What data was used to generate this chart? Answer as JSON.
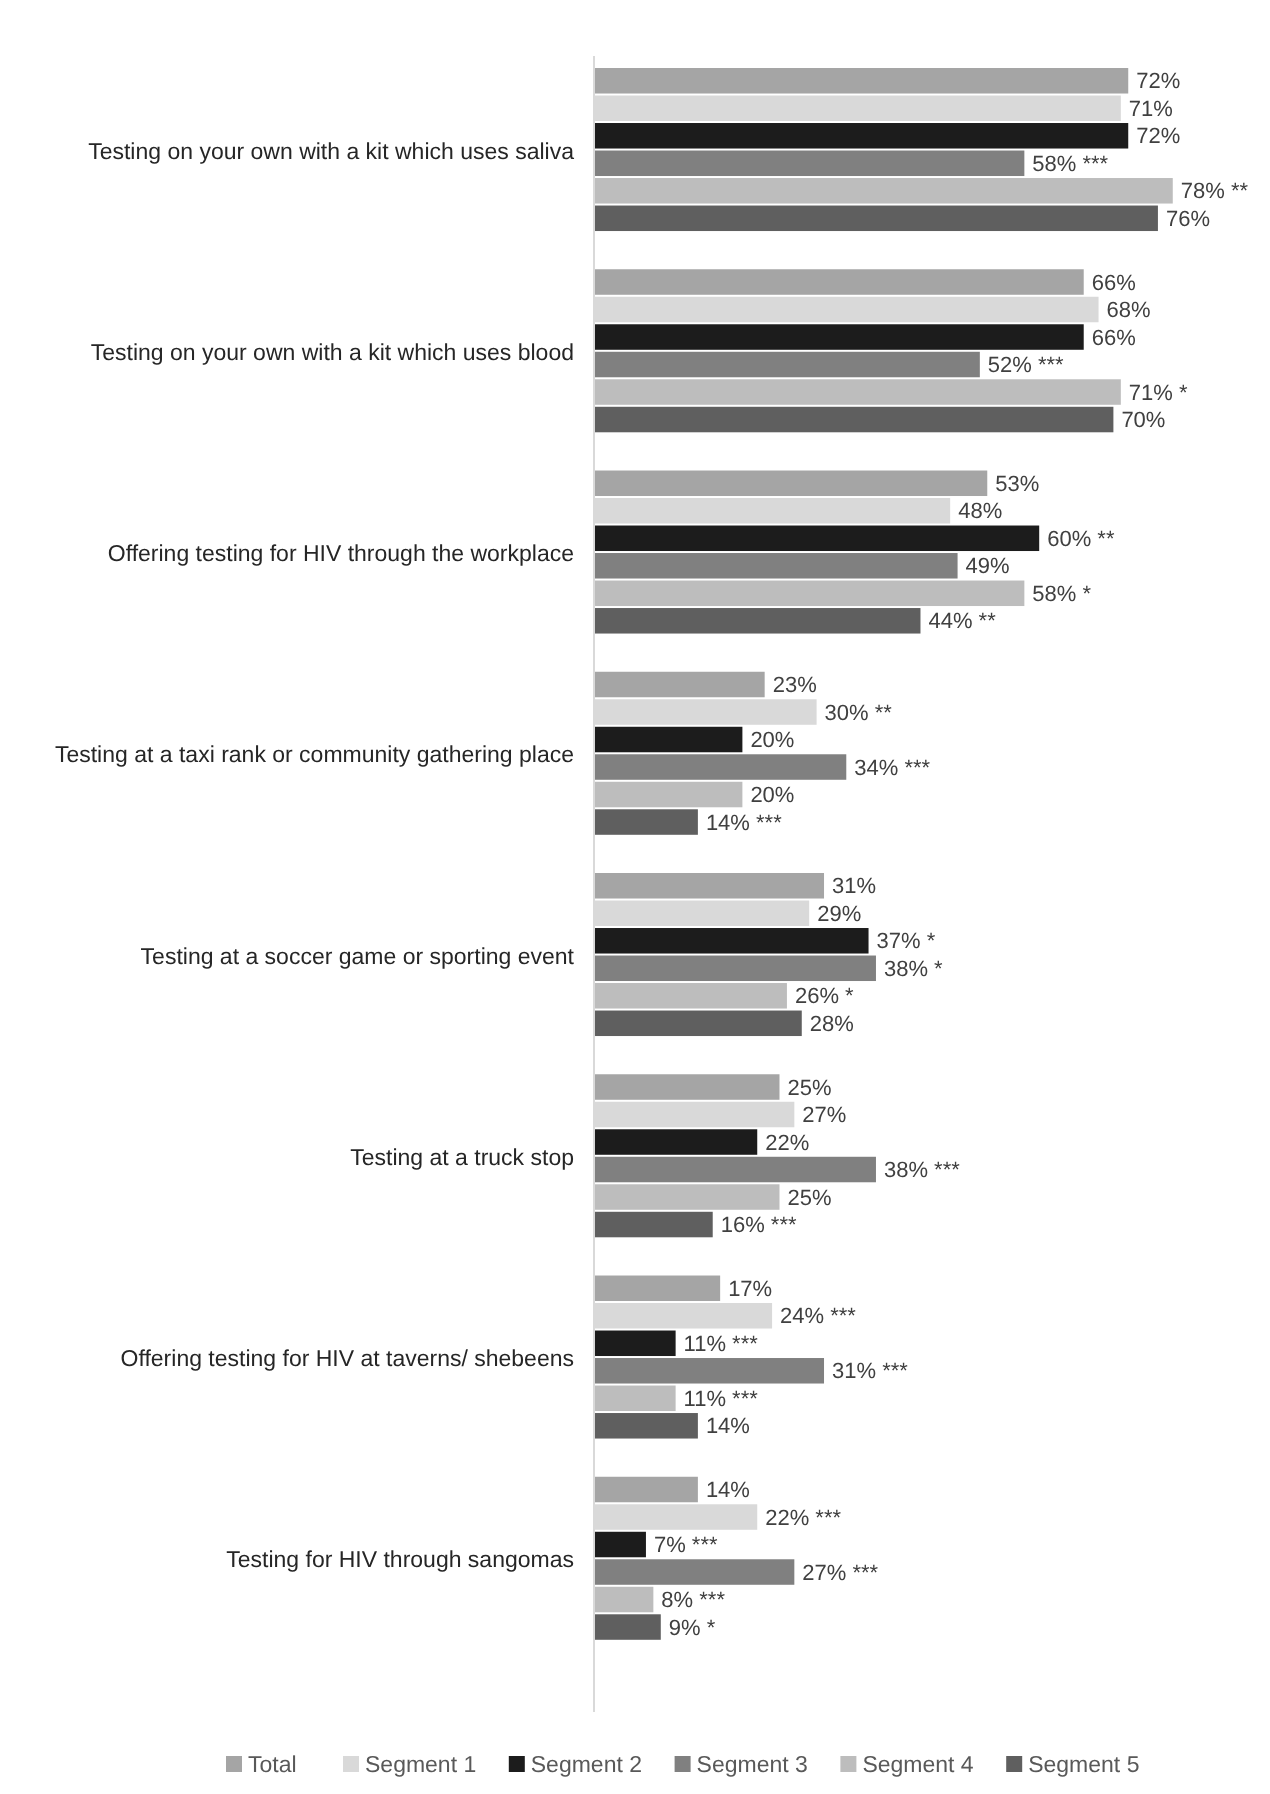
{
  "chart_data": {
    "type": "bar",
    "orientation": "horizontal",
    "legend": "bottom",
    "categories": [
      "Testing on your own with a kit which uses saliva",
      "Testing on your own with a kit which uses blood",
      "Offering testing for HIV through the workplace",
      "Testing at a taxi rank or community gathering place",
      "Testing at a soccer game or sporting event",
      "Testing at a truck stop",
      "Offering testing for HIV at taverns/ shebeens",
      "Testing for HIV through sangomas"
    ],
    "series": [
      {
        "name": "Total",
        "color": "#a5a5a5",
        "values": [
          72,
          66,
          53,
          23,
          31,
          25,
          17,
          14
        ],
        "value_labels": [
          "72%",
          "66%",
          "53%",
          "23%",
          "31%",
          "25%",
          "17%",
          "14%"
        ]
      },
      {
        "name": "Segment 1",
        "color": "#d9d9d9",
        "values": [
          71,
          68,
          48,
          30,
          29,
          27,
          24,
          22
        ],
        "value_labels": [
          "71%",
          "68%",
          "48%",
          "30% **",
          "29%",
          "27%",
          "24% ***",
          "22% ***"
        ]
      },
      {
        "name": "Segment 2",
        "color": "#1c1c1c",
        "values": [
          72,
          66,
          60,
          20,
          37,
          22,
          11,
          7
        ],
        "value_labels": [
          "72%",
          "66%",
          "60% **",
          "20%",
          "37% *",
          "22%",
          "11% ***",
          "7% ***"
        ]
      },
      {
        "name": "Segment 3",
        "color": "#808080",
        "values": [
          58,
          52,
          49,
          34,
          38,
          38,
          31,
          27
        ],
        "value_labels": [
          "58% ***",
          "52% ***",
          "49%",
          "34% ***",
          "38% *",
          "38% ***",
          "31% ***",
          "27% ***"
        ]
      },
      {
        "name": "Segment 4",
        "color": "#bdbdbd",
        "values": [
          78,
          71,
          58,
          20,
          26,
          25,
          11,
          8
        ],
        "value_labels": [
          "78% **",
          "71% *",
          "58% *",
          "20%",
          "26% *",
          "25%",
          "11% ***",
          "8% ***"
        ]
      },
      {
        "name": "Segment 5",
        "color": "#5f5f5f",
        "values": [
          76,
          70,
          44,
          14,
          28,
          16,
          14,
          9
        ],
        "value_labels": [
          "76%",
          "70%",
          "44% **",
          "14% ***",
          "28%",
          "16% ***",
          "14%",
          "9% *"
        ]
      }
    ]
  }
}
